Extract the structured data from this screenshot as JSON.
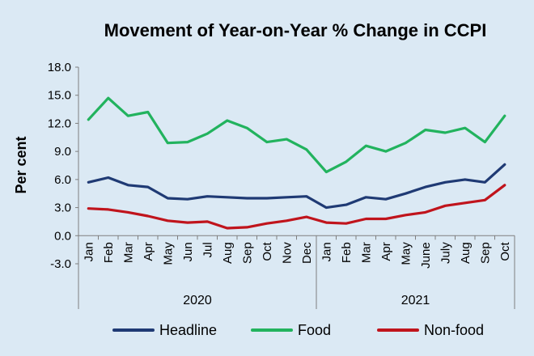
{
  "chart_data": {
    "type": "line",
    "title": "Movement of Year-on-Year % Change in CCPI",
    "ylabel": "Per cent",
    "xlabel": "",
    "ylim": [
      -3.0,
      18.0
    ],
    "yticks": [
      "18.0",
      "15.0",
      "12.0",
      "9.0",
      "6.0",
      "3.0",
      "0.0",
      "-3.0"
    ],
    "categories": [
      "Jan",
      "Feb",
      "Mar",
      "Apr",
      "May",
      "Jun",
      "Jul",
      "Aug",
      "Sep",
      "Oct",
      "Nov",
      "Dec",
      "Jan",
      "Feb",
      "Mar",
      "Apr",
      "May",
      "June",
      "July",
      "Aug",
      "Sep",
      "Oct"
    ],
    "year_groups": [
      {
        "label": "2020",
        "count": 12
      },
      {
        "label": "2021",
        "count": 10
      }
    ],
    "grid": false,
    "legend_position": "bottom",
    "series": [
      {
        "name": "Headline",
        "color": "#1f3a74",
        "values": [
          5.7,
          6.2,
          5.4,
          5.2,
          4.0,
          3.9,
          4.2,
          4.1,
          4.0,
          4.0,
          4.1,
          4.2,
          3.0,
          3.3,
          4.1,
          3.9,
          4.5,
          5.2,
          5.7,
          6.0,
          5.7,
          7.6
        ]
      },
      {
        "name": "Food",
        "color": "#22b35e",
        "values": [
          12.4,
          14.7,
          12.8,
          13.2,
          9.9,
          10.0,
          10.9,
          12.3,
          11.5,
          10.0,
          10.3,
          9.2,
          6.8,
          7.9,
          9.6,
          9.0,
          9.9,
          11.3,
          11.0,
          11.5,
          10.0,
          12.8
        ]
      },
      {
        "name": "Non-food",
        "color": "#c0141c",
        "values": [
          2.9,
          2.8,
          2.5,
          2.1,
          1.6,
          1.4,
          1.5,
          0.8,
          0.9,
          1.3,
          1.6,
          2.0,
          1.4,
          1.3,
          1.8,
          1.8,
          2.2,
          2.5,
          3.2,
          3.5,
          3.8,
          5.4
        ]
      }
    ]
  }
}
